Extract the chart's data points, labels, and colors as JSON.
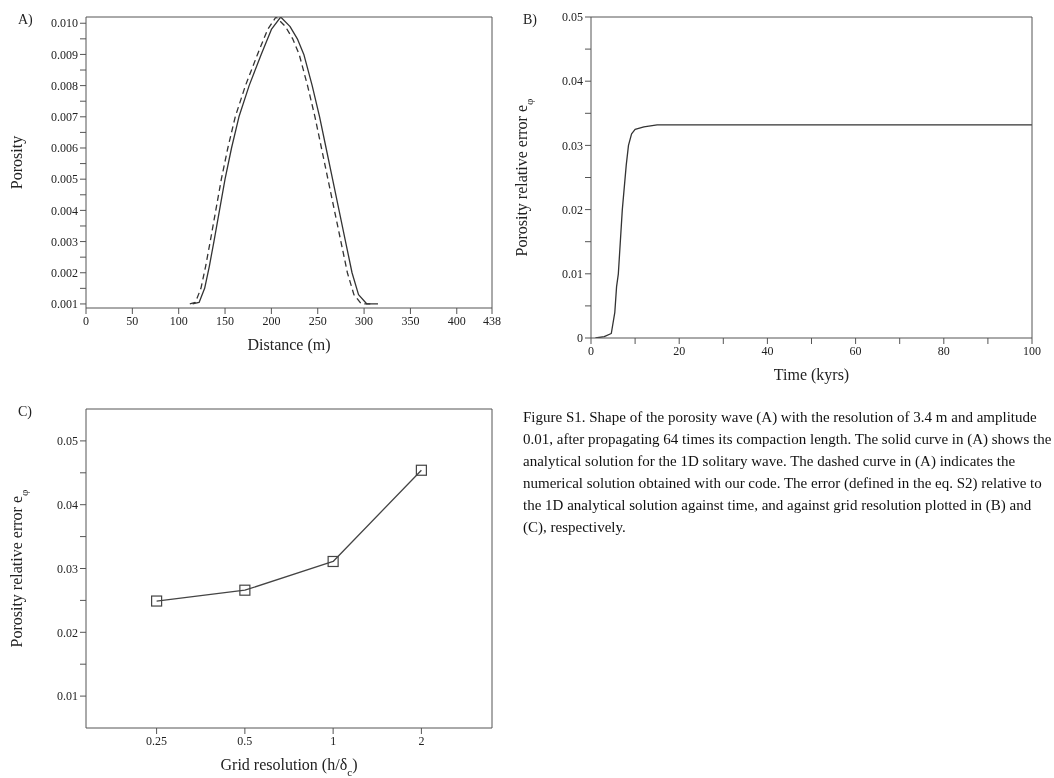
{
  "chart_data": [
    {
      "type": "line",
      "title": "A)",
      "xlabel": "Distance (m)",
      "ylabel": "Porosity",
      "xlim": [
        0,
        438
      ],
      "xticks": [
        0,
        50,
        100,
        150,
        200,
        250,
        300,
        350,
        400,
        438
      ],
      "ylim": [
        0.00087,
        0.0102
      ],
      "yticks": [
        0.001,
        {
          "value": 0.0015,
          "label": null
        },
        0.002,
        {
          "value": 0.0025,
          "label": null
        },
        0.003,
        {
          "value": 0.0035,
          "label": null
        },
        0.004,
        {
          "value": 0.0045,
          "label": null
        },
        0.005,
        {
          "value": 0.0055,
          "label": null
        },
        0.006,
        {
          "value": 0.0065,
          "label": null
        },
        0.007,
        {
          "value": 0.0075,
          "label": null
        },
        0.008,
        {
          "value": 0.0085,
          "label": null
        },
        0.009,
        {
          "value": 0.0095,
          "label": null
        },
        {
          "value": 0.01,
          "label": "0.010"
        }
      ],
      "marker": "none",
      "series": [
        {
          "color": "#333333",
          "line_style": "solid",
          "x": [
            115,
            122,
            128,
            133,
            138,
            144,
            150,
            157,
            165,
            176,
            189,
            200,
            210,
            220,
            228,
            235,
            244,
            252,
            259,
            266,
            273,
            280,
            287,
            294,
            303,
            315
          ],
          "values": [
            0.001,
            0.00105,
            0.0015,
            0.0022,
            0.003,
            0.004,
            0.005,
            0.006,
            0.007,
            0.008,
            0.009,
            0.0098,
            0.0102,
            0.0099,
            0.0095,
            0.009,
            0.008,
            0.007,
            0.006,
            0.005,
            0.004,
            0.003,
            0.002,
            0.0013,
            0.001,
            0.001
          ]
        },
        {
          "color": "#333333",
          "line_style": "dashed",
          "x": [
            112,
            118,
            124,
            129,
            134,
            140,
            146,
            153,
            161,
            172,
            185,
            196,
            205,
            215,
            223,
            230,
            239,
            247,
            254,
            261,
            268,
            275,
            282,
            289,
            297,
            310
          ],
          "values": [
            0.001,
            0.00105,
            0.0015,
            0.0022,
            0.003,
            0.004,
            0.005,
            0.006,
            0.007,
            0.008,
            0.009,
            0.0098,
            0.0102,
            0.0099,
            0.0095,
            0.009,
            0.008,
            0.007,
            0.006,
            0.005,
            0.004,
            0.003,
            0.002,
            0.0013,
            0.001,
            0.001
          ]
        }
      ]
    },
    {
      "type": "line",
      "title": "B)",
      "xlabel": "Time (kyrs)",
      "ylabel": "Porosity relative error e$_{φ}$",
      "xlim": [
        0,
        100
      ],
      "xticks": [
        0,
        {
          "value": 10,
          "label": null
        },
        20,
        {
          "value": 30,
          "label": null
        },
        40,
        {
          "value": 50,
          "label": null
        },
        60,
        {
          "value": 70,
          "label": null
        },
        80,
        {
          "value": 90,
          "label": null
        },
        100
      ],
      "ylim": [
        0,
        0.05
      ],
      "yticks": [
        0,
        {
          "value": 0.005,
          "label": null
        },
        0.01,
        {
          "value": 0.015,
          "label": null
        },
        0.02,
        {
          "value": 0.025,
          "label": null
        },
        0.03,
        {
          "value": 0.035,
          "label": null
        },
        0.04,
        {
          "value": 0.045,
          "label": null
        },
        0.05
      ],
      "marker": "none",
      "series": [
        {
          "color": "#333333",
          "line_style": "solid",
          "x": [
            1,
            3,
            4.6,
            5.4,
            5.8,
            6.2,
            7.1,
            8,
            8.5,
            9.2,
            10,
            12,
            15,
            100
          ],
          "values": [
            0,
            0.0002,
            0.0007,
            0.004,
            0.008,
            0.01,
            0.02,
            0.027,
            0.03,
            0.0318,
            0.0325,
            0.0329,
            0.0332,
            0.0332
          ]
        }
      ]
    },
    {
      "type": "line",
      "title": "C)",
      "xlabel": "Grid resolution (h/δ$_{c}$)",
      "ylabel": "Porosity relative error e$_{φ}$",
      "categories": [
        "0.25",
        "0.5",
        "1",
        "2"
      ],
      "ylim": [
        0.005,
        0.055
      ],
      "yticks": [
        0.01,
        {
          "value": 0.015,
          "label": null
        },
        0.02,
        {
          "value": 0.025,
          "label": null
        },
        0.03,
        {
          "value": 0.035,
          "label": null
        },
        0.04,
        {
          "value": 0.045,
          "label": null
        },
        0.05
      ],
      "marker": "square",
      "series": [
        {
          "color": "#444444",
          "values": [
            0.0249,
            0.0266,
            0.0311,
            0.0454
          ]
        }
      ]
    },
    {
      "type": "other",
      "annotations": [
        "Figure S1. Shape of the porosity wave (A) with the resolution of 3.4 m and amplitude 0.01, after propagating 64 times its compaction length. The solid curve in (A) shows the analytical solution for the 1D solitary wave. The dashed curve in (A) indicates the numerical solution obtained with our code. The error (defined in the eq. S2) relative to the 1D analytical solution against time, and against grid resolution plotted in (B) and (C), respectively."
      ]
    }
  ]
}
